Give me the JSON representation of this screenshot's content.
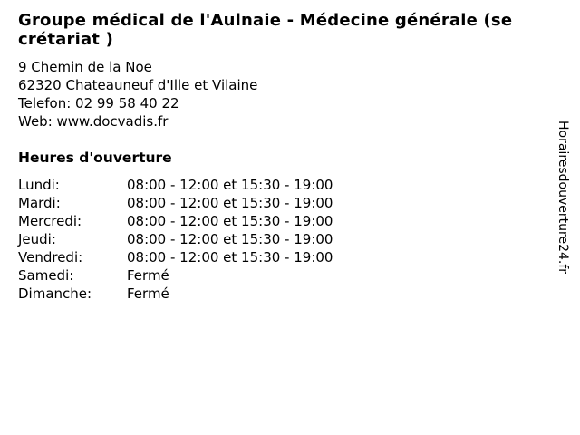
{
  "colors": {
    "background": "#ffffff",
    "text": "#000000"
  },
  "header": {
    "title": "Groupe médical de l'Aulnaie - Médecine générale (se\ncrétariat )"
  },
  "contact": {
    "address_line1": "9 Chemin de la Noe",
    "address_line2": "62320 Chateauneuf d'Ille et Vilaine",
    "phone_line": "Telefon: 02 99 58 40 22",
    "web_line": "Web: www.docvadis.fr"
  },
  "hours": {
    "heading": "Heures d'ouverture",
    "rows": [
      {
        "day": "Lundi:",
        "time": "08:00 - 12:00 et 15:30 - 19:00"
      },
      {
        "day": "Mardi:",
        "time": "08:00 - 12:00 et 15:30 - 19:00"
      },
      {
        "day": "Mercredi:",
        "time": "08:00 - 12:00 et 15:30 - 19:00"
      },
      {
        "day": "Jeudi:",
        "time": "08:00 - 12:00 et 15:30 - 19:00"
      },
      {
        "day": "Vendredi:",
        "time": "08:00 - 12:00 et 15:30 - 19:00"
      },
      {
        "day": "Samedi:",
        "time": "Fermé"
      },
      {
        "day": "Dimanche:",
        "time": "Fermé"
      }
    ]
  },
  "watermark": {
    "label": "Horairesdouverture24.fr"
  }
}
